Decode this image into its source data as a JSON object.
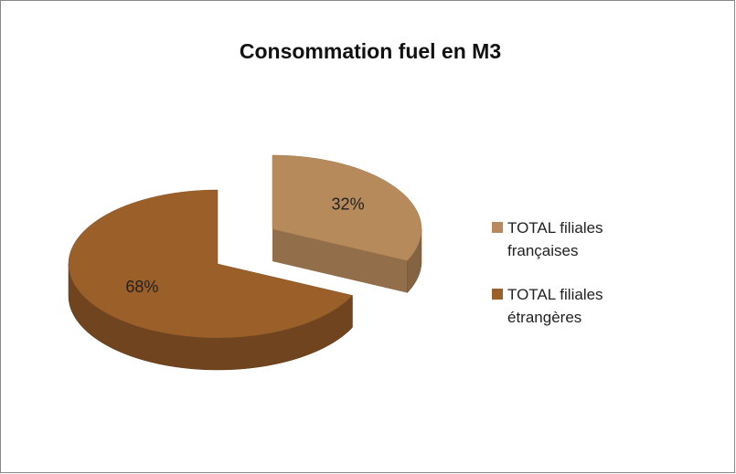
{
  "chart_data": {
    "type": "pie",
    "title": "Consommation fuel en M3",
    "categories": [
      "TOTAL filiales françaises",
      "TOTAL filiales étrangères"
    ],
    "values": [
      32,
      68
    ],
    "value_labels": [
      "32%",
      "68%"
    ],
    "colors": [
      "#b78a5c",
      "#9b5f2a"
    ]
  }
}
